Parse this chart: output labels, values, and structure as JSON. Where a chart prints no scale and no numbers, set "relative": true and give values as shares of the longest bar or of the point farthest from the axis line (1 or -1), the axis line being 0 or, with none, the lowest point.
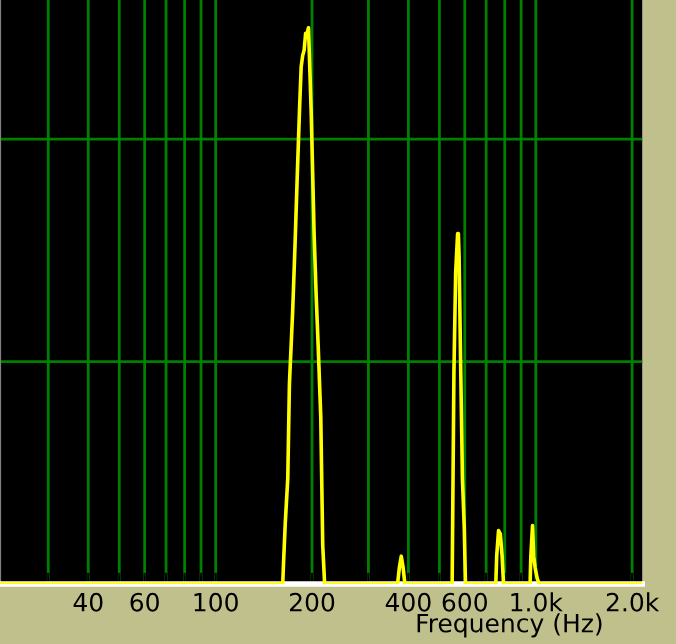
{
  "chart_data": {
    "type": "line",
    "xlabel": "Frequency (Hz)",
    "relative": true,
    "log": "x",
    "grid": true,
    "tick_labels": "x",
    "marker": "none",
    "line_style": "solid",
    "xlim": [
      21.2,
      2150
    ],
    "xticks": [
      {
        "value": 30,
        "label": null
      },
      40,
      {
        "value": 50,
        "label": null
      },
      60,
      {
        "value": 70,
        "label": null
      },
      {
        "value": 80,
        "label": null
      },
      {
        "value": 90,
        "label": null
      },
      100,
      200,
      {
        "value": 300,
        "label": null
      },
      400,
      {
        "value": 500,
        "label": null
      },
      600,
      {
        "value": 700,
        "label": null
      },
      {
        "value": 800,
        "label": null
      },
      {
        "value": 900,
        "label": null
      },
      {
        "value": 1000,
        "label": "1.0k"
      },
      {
        "value": 2000,
        "label": "2.0k"
      }
    ],
    "series": [
      {
        "color": "#ffff00",
        "x": [
          21.2,
          162,
          163,
          165,
          168,
          170,
          174,
          177,
          180,
          183,
          185,
          187,
          189,
          191,
          193,
          195,
          197,
          199,
          203,
          206,
          209,
          213,
          216,
          219,
          370,
          375,
          380,
          385,
          390,
          548,
          550,
          555,
          562,
          570,
          573,
          576,
          582,
          590,
          598,
          603,
          750,
          755,
          765,
          775,
          785,
          793,
          960,
          965,
          977,
          985,
          995,
          1010,
          1025,
          2150
        ],
        "values": [
          0,
          0,
          0.04,
          0.11,
          0.19,
          0.36,
          0.49,
          0.61,
          0.74,
          0.86,
          0.93,
          0.95,
          0.96,
          0.99,
          0.99,
          1.0,
          0.92,
          0.84,
          0.63,
          0.52,
          0.43,
          0.3,
          0.07,
          0,
          0,
          0.03,
          0.05,
          0.03,
          0,
          0,
          0.11,
          0.38,
          0.56,
          0.63,
          0.63,
          0.59,
          0.41,
          0.19,
          0.1,
          0,
          0,
          0.05,
          0.096,
          0.09,
          0.05,
          0,
          0,
          0.05,
          0.105,
          0.05,
          0.03,
          0.01,
          0,
          0
        ]
      }
    ]
  }
}
